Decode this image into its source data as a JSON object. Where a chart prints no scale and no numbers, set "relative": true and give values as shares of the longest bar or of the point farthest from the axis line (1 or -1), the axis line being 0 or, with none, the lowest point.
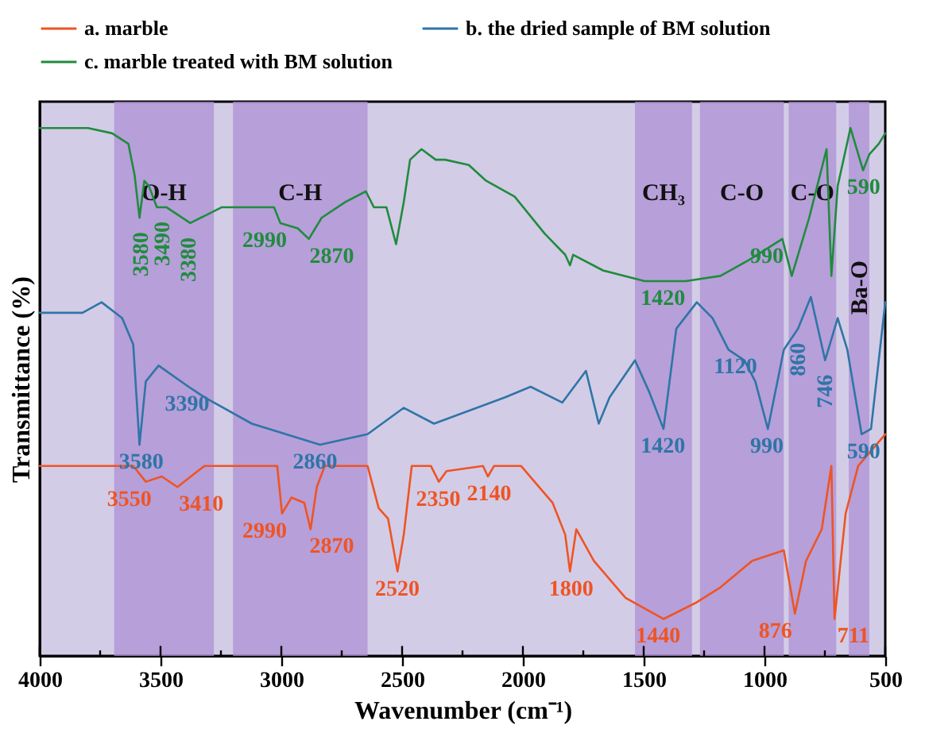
{
  "chart_data": {
    "type": "line",
    "relative": true,
    "xlabel": "Wavenumber (cm⁻¹)",
    "ylabel": "Transmittance (%)",
    "xlim": [
      4000,
      500
    ],
    "xticks": [
      4000,
      {
        "value": 3750,
        "label": null
      },
      3500,
      {
        "value": 3250,
        "label": null
      },
      3000,
      {
        "value": 2750,
        "label": null
      },
      2500,
      {
        "value": 2250,
        "label": null
      },
      2000,
      {
        "value": 1750,
        "label": null
      },
      1500,
      {
        "value": 1250,
        "label": null
      },
      1000,
      {
        "value": 750,
        "label": null
      },
      500
    ],
    "grid": false,
    "legend": "top",
    "marker": "none",
    "line_style": "solid",
    "series": [
      {
        "name": "a. marble",
        "color": "#ee5424",
        "x": [
          4000,
          3700,
          3613,
          3561,
          3495,
          3430,
          3318,
          3017,
          2997,
          2958,
          2905,
          2879,
          2853,
          2820,
          2643,
          2597,
          2558,
          2519,
          2493,
          2460,
          2381,
          2348,
          2316,
          2165,
          2145,
          2119,
          2008,
          1877,
          1825,
          1805,
          1779,
          1706,
          1575,
          1418,
          1287,
          1182,
          1051,
          920,
          874,
          828,
          763,
          723,
          710,
          664,
          612,
          500
        ],
        "values": [
          0.36,
          0.36,
          0.36,
          0.33,
          0.34,
          0.32,
          0.36,
          0.36,
          0.27,
          0.3,
          0.29,
          0.24,
          0.32,
          0.36,
          0.36,
          0.28,
          0.26,
          0.16,
          0.23,
          0.36,
          0.36,
          0.33,
          0.35,
          0.36,
          0.34,
          0.36,
          0.36,
          0.29,
          0.23,
          0.16,
          0.24,
          0.18,
          0.11,
          0.07,
          0.1,
          0.13,
          0.18,
          0.2,
          0.08,
          0.18,
          0.24,
          0.36,
          0.07,
          0.27,
          0.36,
          0.42
        ]
      },
      {
        "name": "b. the dried sample of BM solution",
        "color": "#2f75a6",
        "x": [
          4000,
          3823,
          3744,
          3659,
          3613,
          3587,
          3561,
          3508,
          3384,
          3318,
          3122,
          2840,
          2643,
          2493,
          2368,
          2073,
          1968,
          1837,
          1739,
          1686,
          1641,
          1536,
          1477,
          1418,
          1365,
          1280,
          1215,
          1149,
          1083,
          1038,
          986,
          920,
          861,
          808,
          749,
          697,
          657,
          598,
          559,
          500
        ],
        "values": [
          0.65,
          0.65,
          0.67,
          0.64,
          0.59,
          0.4,
          0.52,
          0.55,
          0.51,
          0.49,
          0.44,
          0.4,
          0.42,
          0.47,
          0.44,
          0.49,
          0.51,
          0.48,
          0.54,
          0.44,
          0.49,
          0.56,
          0.5,
          0.43,
          0.62,
          0.67,
          0.64,
          0.58,
          0.56,
          0.52,
          0.43,
          0.58,
          0.62,
          0.68,
          0.56,
          0.64,
          0.58,
          0.42,
          0.43,
          0.67
        ]
      },
      {
        "name": "c. marble treated with BM solution",
        "color": "#1f8c3e",
        "x": [
          4000,
          3800,
          3700,
          3633,
          3607,
          3587,
          3567,
          3548,
          3515,
          3476,
          3377,
          3246,
          3122,
          3030,
          3004,
          2932,
          2886,
          2833,
          2735,
          2650,
          2617,
          2565,
          2525,
          2493,
          2467,
          2420,
          2361,
          2322,
          2224,
          2152,
          2034,
          1910,
          1825,
          1805,
          1792,
          1667,
          1496,
          1326,
          1182,
          1064,
          926,
          887,
          815,
          743,
          723,
          697,
          644,
          592,
          566,
          527,
          500
        ],
        "values": [
          1.0,
          1.0,
          0.99,
          0.97,
          0.91,
          0.83,
          0.9,
          0.89,
          0.85,
          0.85,
          0.82,
          0.85,
          0.85,
          0.85,
          0.82,
          0.81,
          0.79,
          0.83,
          0.86,
          0.88,
          0.85,
          0.85,
          0.78,
          0.86,
          0.94,
          0.96,
          0.94,
          0.94,
          0.93,
          0.9,
          0.87,
          0.8,
          0.76,
          0.74,
          0.76,
          0.73,
          0.71,
          0.71,
          0.72,
          0.75,
          0.79,
          0.72,
          0.83,
          0.96,
          0.72,
          0.89,
          1.0,
          0.92,
          0.95,
          0.97,
          0.99
        ]
      }
    ],
    "bands": [
      {
        "axis": "x",
        "from": 3692,
        "to": 3279,
        "label": "O-H",
        "color": "#ae90d4"
      },
      {
        "axis": "x",
        "from": 3200,
        "to": 2643,
        "label": "C-H",
        "color": "#ae90d4"
      },
      {
        "axis": "x",
        "from": 1536,
        "to": 1300,
        "label": "CH₃",
        "color": "#ae90d4"
      },
      {
        "axis": "x",
        "from": 1267,
        "to": 920,
        "label": "C-O",
        "color": "#ae90d4"
      },
      {
        "axis": "x",
        "from": 900,
        "to": 703,
        "label": "C-O",
        "color": "#ae90d4"
      },
      {
        "axis": "x",
        "from": 651,
        "to": 566,
        "label": "Ba-O",
        "color": "#ae90d4"
      }
    ],
    "annotations": [
      {
        "text": "3580",
        "x": 3580,
        "y": 0.83
      },
      {
        "text": "3490",
        "x": 3490,
        "y": 0.85
      },
      {
        "text": "3380",
        "x": 3380,
        "y": 0.82
      },
      {
        "text": "2990",
        "x": 2990,
        "y": 0.82
      },
      {
        "text": "2870",
        "x": 2870,
        "y": 0.79
      },
      {
        "text": "1420",
        "x": 1420,
        "y": 0.71
      },
      {
        "text": "990",
        "x": 990,
        "y": 0.79
      },
      {
        "text": "590",
        "x": 590,
        "y": 0.92
      },
      {
        "text": "3390",
        "x": 3390,
        "y": 0.51
      },
      {
        "text": "3580",
        "x": 3580,
        "y": 0.4
      },
      {
        "text": "2860",
        "x": 2860,
        "y": 0.4
      },
      {
        "text": "1420",
        "x": 1420,
        "y": 0.43
      },
      {
        "text": "1120",
        "x": 1120,
        "y": 0.58
      },
      {
        "text": "990",
        "x": 990,
        "y": 0.43
      },
      {
        "text": "860",
        "x": 860,
        "y": 0.62
      },
      {
        "text": "746",
        "x": 746,
        "y": 0.56
      },
      {
        "text": "590",
        "x": 590,
        "y": 0.42
      },
      {
        "text": "3550",
        "x": 3550,
        "y": 0.33
      },
      {
        "text": "3410",
        "x": 3410,
        "y": 0.32
      },
      {
        "text": "2990",
        "x": 2990,
        "y": 0.27
      },
      {
        "text": "2870",
        "x": 2870,
        "y": 0.24
      },
      {
        "text": "2520",
        "x": 2520,
        "y": 0.16
      },
      {
        "text": "2350",
        "x": 2350,
        "y": 0.33
      },
      {
        "text": "2140",
        "x": 2140,
        "y": 0.34
      },
      {
        "text": "1800",
        "x": 1800,
        "y": 0.16
      },
      {
        "text": "1440",
        "x": 1440,
        "y": 0.07
      },
      {
        "text": "876",
        "x": 876,
        "y": 0.08
      },
      {
        "text": "711",
        "x": 711,
        "y": 0.07
      }
    ]
  }
}
